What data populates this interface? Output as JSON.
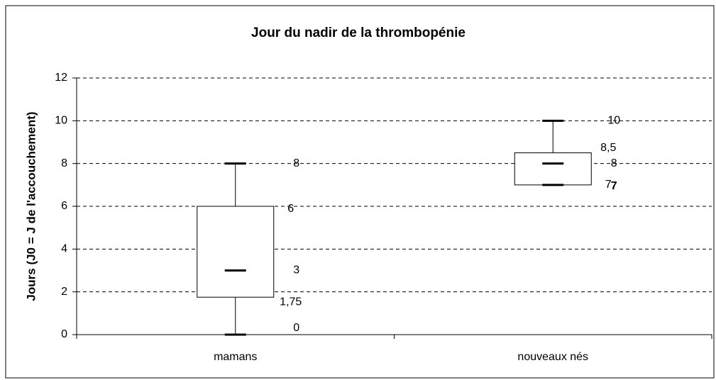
{
  "chart_data": {
    "type": "box",
    "title": "Jour du nadir de la thrombopénie",
    "y_label": "Jours (J0 = J de l'accouchement)",
    "categories": [
      "mamans",
      "nouveaux nés"
    ],
    "boxes": [
      {
        "min": 0,
        "q1": 1.75,
        "median": 3,
        "q3": 6,
        "max": 8,
        "value_labels": {
          "q1": "1,75"
        }
      },
      {
        "min": 7,
        "q1": 7,
        "median": 8,
        "q3": 8.5,
        "max": 10,
        "value_labels": {
          "q3": "8,5"
        }
      }
    ],
    "ylim": [
      0,
      12
    ],
    "yticks": [
      0,
      2,
      4,
      6,
      8,
      10,
      12
    ],
    "grid": true
  }
}
